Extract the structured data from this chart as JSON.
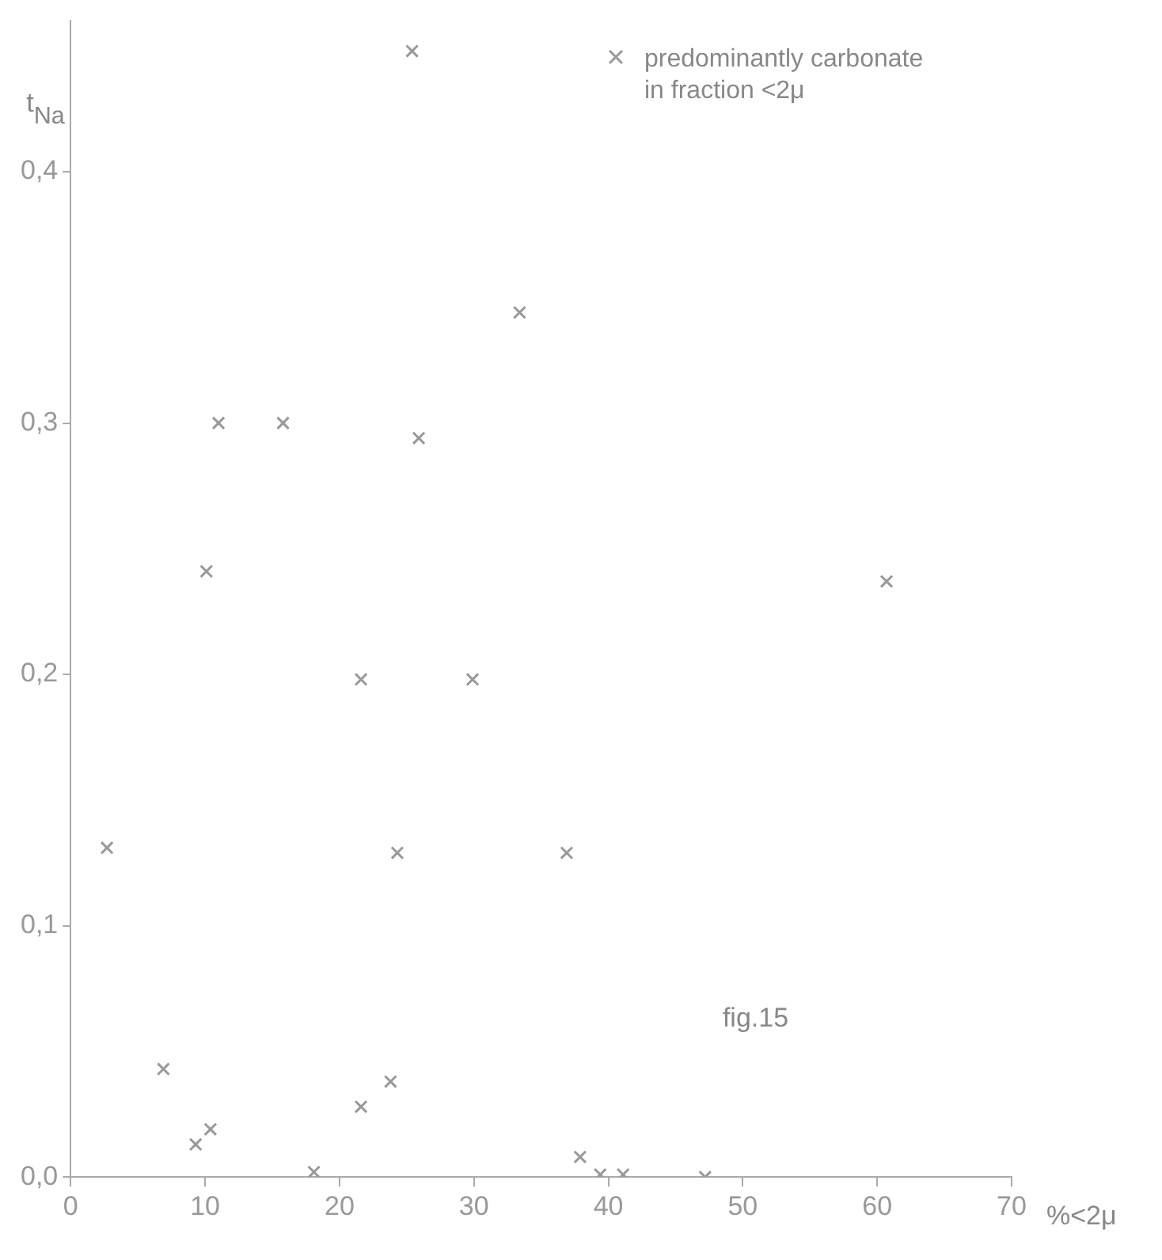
{
  "chart_data": {
    "type": "scatter",
    "ylabel": "t$_{Na}$",
    "xlabel": "%<2μ",
    "annotations": [
      "fig.15"
    ],
    "legend": "top right",
    "marker": "cross",
    "grid": false,
    "xlim": [
      0,
      70
    ],
    "xticks": [
      0,
      10,
      20,
      30,
      40,
      50,
      60,
      70
    ],
    "ylim": [
      0,
      0.46
    ],
    "yticks": [
      {
        "value": 0,
        "label": "0,0"
      },
      {
        "value": 0.1,
        "label": "0,1"
      },
      {
        "value": 0.2,
        "label": "0,2"
      },
      {
        "value": 0.3,
        "label": "0,3"
      },
      {
        "value": 0.4,
        "label": "0,4"
      }
    ],
    "series": [
      {
        "color": "#999999",
        "x": [
          25.4,
          33.4,
          25.9,
          10.1,
          60.7,
          29.9,
          2.7,
          24.3,
          36.9,
          6.9,
          9.3,
          10.4,
          18.1,
          23.8,
          37.9,
          39.4,
          41.1
        ],
        "values": [
          0.448,
          0.344,
          0.294,
          0.241,
          0.237,
          0.198,
          0.131,
          0.129,
          0.129,
          0.043,
          0.013,
          0.019,
          0.002,
          0.038,
          0.008,
          0.001,
          0.001
        ]
      },
      {
        "name": "predominantly carbonate in fraction <2μ",
        "color": "#999999",
        "x": [
          11.0,
          15.8,
          21.6,
          21.6,
          47.2
        ],
        "values": [
          0.3,
          0.3,
          0.198,
          0.028,
          0.0
        ]
      }
    ]
  }
}
